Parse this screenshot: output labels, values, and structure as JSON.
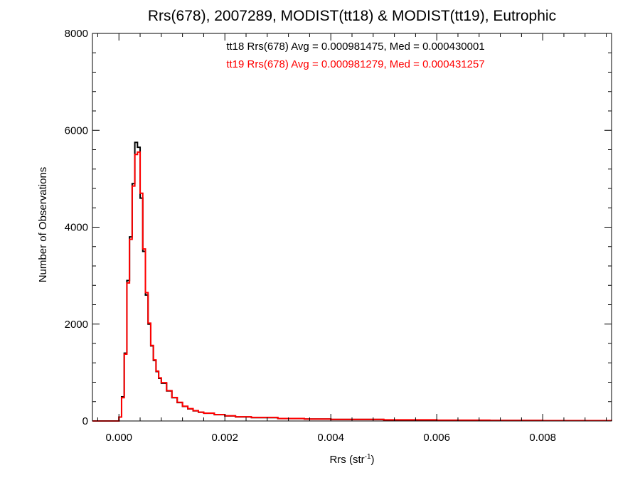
{
  "chart_data": {
    "type": "line",
    "title": "Rrs(678), 2007289, MODIST(tt18) & MODIST(tt19), Eutrophic",
    "xlabel": "Rrs (str",
    "xlabel_superscript": "-1",
    "xlabel_suffix": ")",
    "ylabel": "Number of Observations",
    "xlim": [
      -0.0005,
      0.0093
    ],
    "ylim": [
      0,
      8000
    ],
    "x_ticks": [
      "0.000",
      "0.002",
      "0.004",
      "0.006",
      "0.008"
    ],
    "y_ticks": [
      "0",
      "2000",
      "4000",
      "6000",
      "8000"
    ],
    "grid": false,
    "annotations": [
      {
        "text": "tt18 Rrs(678) Avg = 0.000981475, Med = 0.000430001",
        "color": "#000000"
      },
      {
        "text": "tt19 Rrs(678) Avg = 0.000981279, Med = 0.000431257",
        "color": "#ff0000"
      }
    ],
    "series": [
      {
        "color": "#000000",
        "x": [
          -0.0005,
          0.0,
          5e-05,
          0.0001,
          0.00015,
          0.0002,
          0.00025,
          0.0003,
          0.00035,
          0.0004,
          0.00045,
          0.0005,
          0.00055,
          0.0006,
          0.00065,
          0.0007,
          0.00075,
          0.0008,
          0.0009,
          0.001,
          0.0011,
          0.0012,
          0.0013,
          0.0014,
          0.0015,
          0.0016,
          0.0018,
          0.002,
          0.0022,
          0.0025,
          0.003,
          0.0035,
          0.004,
          0.005,
          0.006,
          0.007,
          0.008,
          0.0093
        ],
        "y": [
          0,
          80,
          500,
          1400,
          2900,
          3800,
          4900,
          5750,
          5650,
          4600,
          3500,
          2600,
          2000,
          1550,
          1250,
          1020,
          880,
          780,
          620,
          480,
          380,
          300,
          250,
          210,
          180,
          160,
          130,
          105,
          85,
          70,
          50,
          40,
          32,
          22,
          15,
          10,
          8,
          5
        ]
      },
      {
        "color": "#ff0000",
        "x": [
          -0.0005,
          0.0,
          5e-05,
          0.0001,
          0.00015,
          0.0002,
          0.00025,
          0.0003,
          0.00035,
          0.0004,
          0.00045,
          0.0005,
          0.00055,
          0.0006,
          0.00065,
          0.0007,
          0.00075,
          0.0008,
          0.0009,
          0.001,
          0.0011,
          0.0012,
          0.0013,
          0.0014,
          0.0015,
          0.0016,
          0.0018,
          0.002,
          0.0022,
          0.0025,
          0.003,
          0.0035,
          0.004,
          0.005,
          0.006,
          0.007,
          0.008,
          0.0093
        ],
        "y": [
          0,
          80,
          480,
          1380,
          2850,
          3750,
          4850,
          5500,
          5550,
          4700,
          3550,
          2650,
          2020,
          1560,
          1260,
          1030,
          890,
          790,
          625,
          485,
          385,
          305,
          255,
          212,
          182,
          162,
          132,
          107,
          86,
          71,
          51,
          41,
          33,
          23,
          16,
          11,
          8,
          5
        ]
      }
    ]
  }
}
